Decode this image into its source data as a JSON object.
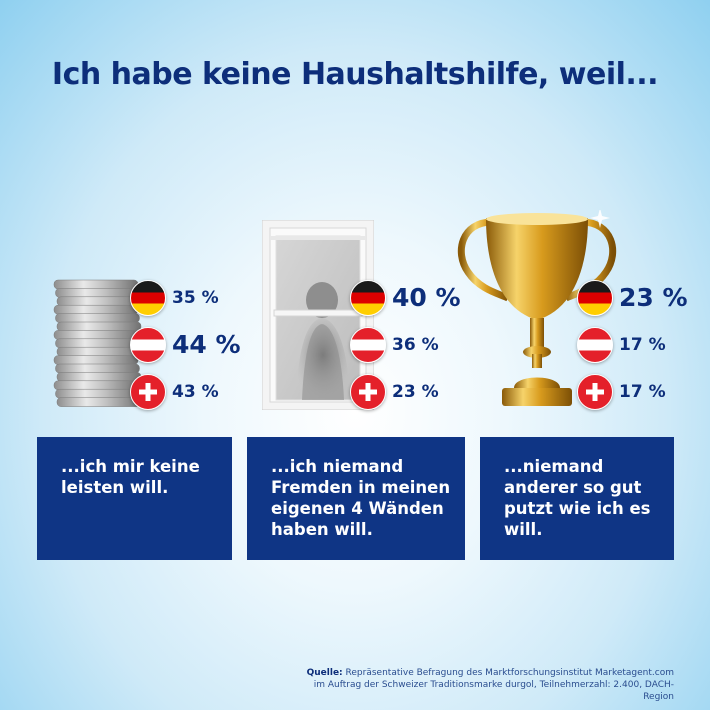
{
  "title": "Ich habe keine Haushaltshilfe, weil...",
  "chart_data": {
    "type": "table",
    "title": "Ich habe keine Haushaltshilfe, weil...",
    "series_labels": [
      "DE",
      "AT",
      "CH"
    ],
    "categories": [
      {
        "label": "...ich mir keine leisten will.",
        "values": [
          35,
          44,
          43
        ],
        "value_labels": [
          "35 %",
          "44 %",
          "43 %"
        ],
        "highlight_index": 1
      },
      {
        "label": "...ich niemand Fremden in meinen eigenen 4 Wänden haben will.",
        "values": [
          40,
          36,
          23
        ],
        "value_labels": [
          "40 %",
          "36 %",
          "23 %"
        ],
        "highlight_index": 0
      },
      {
        "label": "...niemand anderer so gut putzt wie ich es will.",
        "values": [
          23,
          17,
          17
        ],
        "value_labels": [
          "23 %",
          "17 %",
          "17 %"
        ],
        "highlight_index": 0
      }
    ]
  },
  "source": {
    "label": "Quelle:",
    "text": "Repräsentative Befragung des Marktforschungsinstitut Marketagent.com im Auftrag der Schweizer Traditionsmarke durgol, Teilnehmerzahl: 2.400, DACH-Region"
  },
  "colors": {
    "navy": "#0f3585",
    "title": "#0d2e7a",
    "gold": "#d4a11c"
  },
  "icons": [
    "coin-stack-icon",
    "window-silhouette-icon",
    "trophy-icon"
  ]
}
